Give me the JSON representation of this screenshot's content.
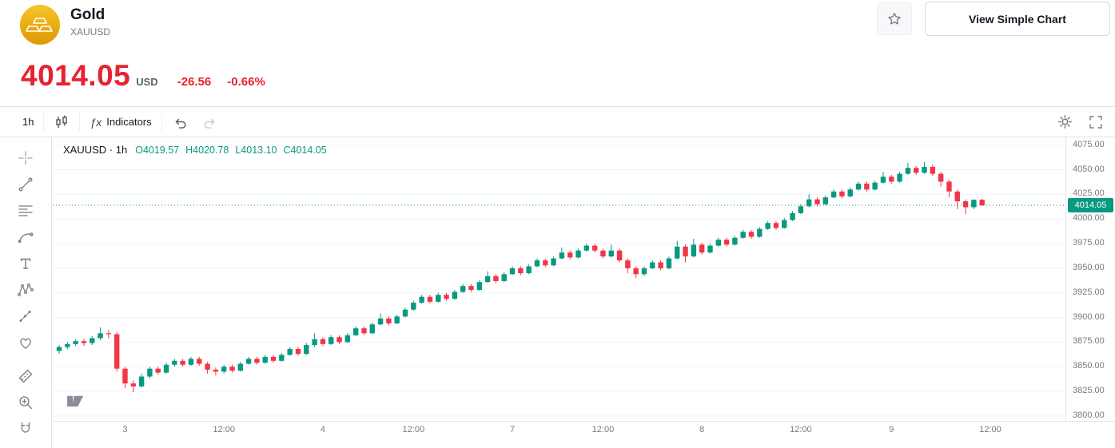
{
  "header": {
    "title": "Gold",
    "symbol": "XAUUSD",
    "view_simple_chart_label": "View Simple Chart"
  },
  "quote": {
    "price": "4014.05",
    "currency": "USD",
    "change": "-26.56",
    "change_percent": "-0.66%"
  },
  "toolbar": {
    "interval": "1h",
    "fx_glyph": "ƒx",
    "indicators_label": "Indicators"
  },
  "legend": {
    "symbol_interval": "XAUUSD · 1h",
    "o_label": "O",
    "o_value": "4019.57",
    "h_label": "H",
    "h_value": "4020.78",
    "l_label": "L",
    "l_value": "4013.10",
    "c_label": "C",
    "c_value": "4014.05"
  },
  "sidebar_tools": [
    "crosshair",
    "trend-line",
    "horizontal-lines",
    "brush",
    "text",
    "xabcd-pattern",
    "forecast",
    "emoji",
    "ruler",
    "zoom-in",
    "magnet"
  ],
  "icons": {
    "header": [
      "gold-ingots-icon",
      "star-icon"
    ],
    "toolbar": [
      "candlestick-icon",
      "fx-icon",
      "undo-icon",
      "redo-icon",
      "gear-icon",
      "fullscreen-icon"
    ],
    "chart": [
      "tradingview-logo-icon"
    ]
  },
  "colors": {
    "up": "#089981",
    "down": "#f23645",
    "price_red": "#e8222f",
    "badge": "#089981",
    "grid": "#f0f3fa",
    "axis_text": "#787b86",
    "border": "#e0e3eb"
  },
  "chart_data": {
    "type": "candlestick",
    "symbol": "XAUUSD",
    "interval": "1h",
    "title": "XAUUSD · 1h",
    "ohlc_last": {
      "open": 4019.57,
      "high": 4020.78,
      "low": 4013.1,
      "close": 4014.05
    },
    "last_price": 4014.05,
    "last_price_label": "4014.05",
    "ylim": [
      3795,
      4083
    ],
    "grid": "on",
    "y_ticks": [
      {
        "value": 4075,
        "label": "4075.00"
      },
      {
        "value": 4050,
        "label": "4050.00"
      },
      {
        "value": 4025,
        "label": "4025.00"
      },
      {
        "value": 4000,
        "label": "4000.00"
      },
      {
        "value": 3975,
        "label": "3975.00"
      },
      {
        "value": 3950,
        "label": "3950.00"
      },
      {
        "value": 3925,
        "label": "3925.00"
      },
      {
        "value": 3900,
        "label": "3900.00"
      },
      {
        "value": 3875,
        "label": "3875.00"
      },
      {
        "value": 3850,
        "label": "3850.00"
      },
      {
        "value": 3825,
        "label": "3825.00"
      },
      {
        "value": 3800,
        "label": "3800.00"
      }
    ],
    "x_ticks": [
      {
        "index": 8,
        "label": "3"
      },
      {
        "index": 20,
        "label": "12:00"
      },
      {
        "index": 32,
        "label": "4"
      },
      {
        "index": 43,
        "label": "12:00"
      },
      {
        "index": 55,
        "label": "7"
      },
      {
        "index": 66,
        "label": "12:00"
      },
      {
        "index": 78,
        "label": "8"
      },
      {
        "index": 90,
        "label": "12:00"
      },
      {
        "index": 101,
        "label": "9"
      },
      {
        "index": 113,
        "label": "12:00"
      }
    ],
    "candles": [
      [
        3866,
        3872,
        3863,
        3870
      ],
      [
        3870,
        3875,
        3868,
        3873
      ],
      [
        3873,
        3878,
        3871,
        3876
      ],
      [
        3876,
        3878,
        3871,
        3874
      ],
      [
        3874,
        3881,
        3872,
        3879
      ],
      [
        3879,
        3890,
        3877,
        3884
      ],
      [
        3884,
        3887,
        3879,
        3883
      ],
      [
        3883,
        3885,
        3845,
        3848
      ],
      [
        3848,
        3850,
        3828,
        3833
      ],
      [
        3833,
        3836,
        3824,
        3830
      ],
      [
        3830,
        3843,
        3829,
        3840
      ],
      [
        3840,
        3850,
        3838,
        3848
      ],
      [
        3848,
        3850,
        3842,
        3844
      ],
      [
        3844,
        3854,
        3843,
        3852
      ],
      [
        3852,
        3858,
        3850,
        3856
      ],
      [
        3856,
        3858,
        3850,
        3852
      ],
      [
        3852,
        3860,
        3851,
        3858
      ],
      [
        3858,
        3860,
        3851,
        3853
      ],
      [
        3853,
        3855,
        3843,
        3847
      ],
      [
        3847,
        3849,
        3841,
        3845
      ],
      [
        3845,
        3852,
        3843,
        3850
      ],
      [
        3850,
        3852,
        3844,
        3846
      ],
      [
        3846,
        3855,
        3845,
        3853
      ],
      [
        3853,
        3860,
        3852,
        3858
      ],
      [
        3858,
        3860,
        3852,
        3854
      ],
      [
        3854,
        3862,
        3853,
        3860
      ],
      [
        3860,
        3862,
        3854,
        3856
      ],
      [
        3856,
        3864,
        3855,
        3862
      ],
      [
        3862,
        3870,
        3861,
        3868
      ],
      [
        3868,
        3870,
        3861,
        3863
      ],
      [
        3863,
        3874,
        3862,
        3872
      ],
      [
        3872,
        3884,
        3870,
        3878
      ],
      [
        3878,
        3880,
        3871,
        3873
      ],
      [
        3873,
        3882,
        3872,
        3880
      ],
      [
        3880,
        3882,
        3873,
        3875
      ],
      [
        3875,
        3884,
        3874,
        3882
      ],
      [
        3882,
        3891,
        3881,
        3889
      ],
      [
        3889,
        3891,
        3882,
        3884
      ],
      [
        3884,
        3895,
        3883,
        3893
      ],
      [
        3893,
        3904,
        3892,
        3899
      ],
      [
        3899,
        3901,
        3892,
        3894
      ],
      [
        3894,
        3903,
        3893,
        3901
      ],
      [
        3901,
        3910,
        3900,
        3908
      ],
      [
        3908,
        3917,
        3907,
        3915
      ],
      [
        3915,
        3923,
        3914,
        3921
      ],
      [
        3921,
        3923,
        3914,
        3916
      ],
      [
        3916,
        3925,
        3915,
        3923
      ],
      [
        3923,
        3925,
        3917,
        3919
      ],
      [
        3919,
        3928,
        3918,
        3926
      ],
      [
        3926,
        3934,
        3925,
        3932
      ],
      [
        3932,
        3934,
        3926,
        3928
      ],
      [
        3928,
        3938,
        3927,
        3936
      ],
      [
        3936,
        3947,
        3935,
        3942
      ],
      [
        3942,
        3944,
        3935,
        3937
      ],
      [
        3937,
        3946,
        3936,
        3944
      ],
      [
        3944,
        3952,
        3943,
        3950
      ],
      [
        3950,
        3952,
        3943,
        3945
      ],
      [
        3945,
        3954,
        3944,
        3952
      ],
      [
        3952,
        3960,
        3951,
        3958
      ],
      [
        3958,
        3960,
        3951,
        3953
      ],
      [
        3953,
        3962,
        3952,
        3960
      ],
      [
        3960,
        3971,
        3959,
        3966
      ],
      [
        3966,
        3968,
        3959,
        3961
      ],
      [
        3961,
        3970,
        3960,
        3968
      ],
      [
        3968,
        3975,
        3967,
        3973
      ],
      [
        3973,
        3975,
        3966,
        3968
      ],
      [
        3968,
        3970,
        3960,
        3962
      ],
      [
        3962,
        3974,
        3961,
        3968
      ],
      [
        3968,
        3970,
        3956,
        3958
      ],
      [
        3958,
        3960,
        3945,
        3950
      ],
      [
        3950,
        3952,
        3940,
        3944
      ],
      [
        3944,
        3952,
        3942,
        3950
      ],
      [
        3950,
        3958,
        3949,
        3956
      ],
      [
        3956,
        3958,
        3948,
        3950
      ],
      [
        3950,
        3962,
        3949,
        3960
      ],
      [
        3960,
        3978,
        3959,
        3972
      ],
      [
        3972,
        3974,
        3956,
        3962
      ],
      [
        3962,
        3980,
        3961,
        3974
      ],
      [
        3974,
        3976,
        3964,
        3966
      ],
      [
        3966,
        3975,
        3965,
        3973
      ],
      [
        3973,
        3981,
        3972,
        3979
      ],
      [
        3979,
        3981,
        3972,
        3974
      ],
      [
        3974,
        3983,
        3973,
        3981
      ],
      [
        3981,
        3989,
        3980,
        3987
      ],
      [
        3987,
        3989,
        3980,
        3982
      ],
      [
        3982,
        3992,
        3981,
        3990
      ],
      [
        3990,
        3998,
        3989,
        3996
      ],
      [
        3996,
        3998,
        3989,
        3991
      ],
      [
        3991,
        4001,
        3990,
        3999
      ],
      [
        3999,
        4008,
        3998,
        4006
      ],
      [
        4006,
        4015,
        4005,
        4013
      ],
      [
        4013,
        4025,
        4012,
        4020
      ],
      [
        4020,
        4022,
        4013,
        4015
      ],
      [
        4015,
        4024,
        4014,
        4022
      ],
      [
        4022,
        4030,
        4021,
        4028
      ],
      [
        4028,
        4030,
        4021,
        4023
      ],
      [
        4023,
        4032,
        4022,
        4030
      ],
      [
        4030,
        4038,
        4029,
        4036
      ],
      [
        4036,
        4038,
        4028,
        4030
      ],
      [
        4030,
        4039,
        4029,
        4037
      ],
      [
        4037,
        4048,
        4036,
        4043
      ],
      [
        4043,
        4045,
        4036,
        4038
      ],
      [
        4038,
        4048,
        4037,
        4046
      ],
      [
        4046,
        4057,
        4045,
        4052
      ],
      [
        4052,
        4054,
        4045,
        4047
      ],
      [
        4047,
        4058,
        4046,
        4053
      ],
      [
        4053,
        4055,
        4044,
        4046
      ],
      [
        4046,
        4048,
        4033,
        4038
      ],
      [
        4038,
        4040,
        4022,
        4028
      ],
      [
        4028,
        4030,
        4010,
        4018
      ],
      [
        4018,
        4020,
        4005,
        4012
      ],
      [
        4012,
        4020,
        4010,
        4019.57
      ],
      [
        4019.57,
        4020.78,
        4013.1,
        4014.05
      ]
    ]
  }
}
